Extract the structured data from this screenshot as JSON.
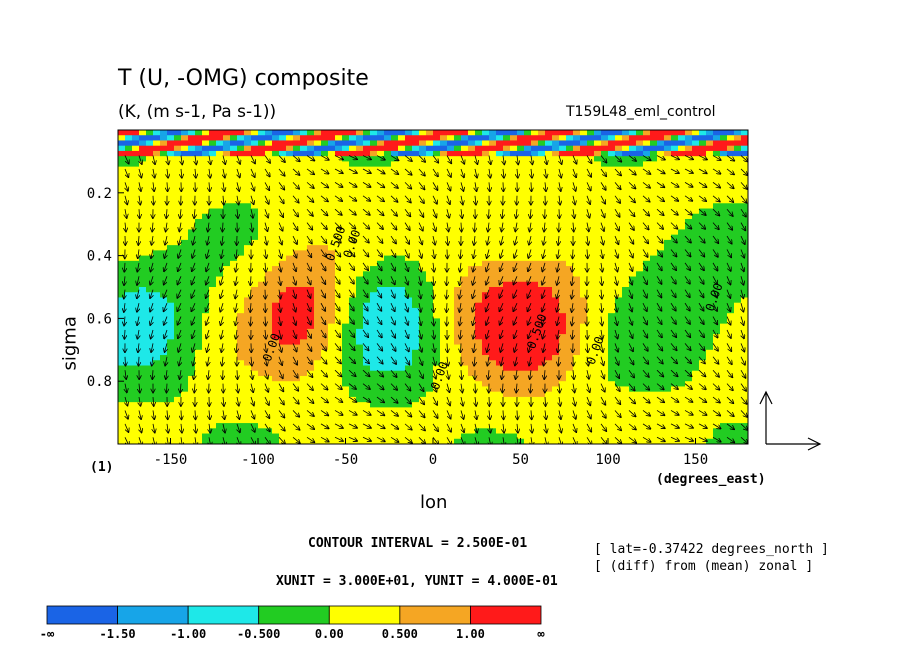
{
  "header": {
    "title": "T (U, -OMG) composite",
    "subtitle": "(K, (m s-1, Pa s-1))",
    "run_name": "T159L48_eml_control"
  },
  "footer": {
    "contour_interval": "CONTOUR INTERVAL = 2.500E-01",
    "units": "XUNIT = 3.000E+01, YUNIT = 4.000E-01",
    "lat_note": "[ lat=-0.37422 degrees_north ]",
    "diff_note": "[ (diff) from (mean) zonal ]",
    "page_number": "(1)"
  },
  "chart_data": {
    "type": "heatmap",
    "xlabel": "lon",
    "x_units_label": "(degrees_east)",
    "ylabel": "sigma",
    "xlim": [
      -180,
      180
    ],
    "ylim": [
      1.0,
      0.0
    ],
    "x_ticks": [
      -150,
      -100,
      -50,
      0,
      50,
      100,
      150
    ],
    "y_ticks": [
      0.2,
      0.4,
      0.6,
      0.8
    ],
    "colorbar": {
      "labels": [
        "-∞",
        "-1.50",
        "-1.00",
        "-0.500",
        "0.00",
        "0.500",
        "1.00",
        "∞"
      ],
      "colors": [
        "#1a64e6",
        "#17a5e8",
        "#1ee8e8",
        "#22cc22",
        "#ffff00",
        "#f5a623",
        "#ff1a1a"
      ]
    },
    "anomalies": [
      {
        "lon": 55,
        "sigma": 0.62,
        "value": 1.3
      },
      {
        "lon": -72,
        "sigma": 0.58,
        "value": 1.2
      },
      {
        "lon": -28,
        "sigma": 0.6,
        "value": -1.1
      },
      {
        "lon": -165,
        "sigma": 0.6,
        "value": -0.8
      },
      {
        "lon": 140,
        "sigma": 0.55,
        "value": -0.6
      },
      {
        "lon": 20,
        "sigma": 0.5,
        "value": 0.4
      }
    ],
    "contour_labels": [
      {
        "text": "0.500",
        "lon": 58,
        "sigma": 0.7
      },
      {
        "text": "0.00",
        "lon": 92,
        "sigma": 0.75
      },
      {
        "text": "0.00",
        "lon": 160,
        "sigma": 0.58
      },
      {
        "text": "0.500",
        "lon": -57,
        "sigma": 0.42
      },
      {
        "text": "0.00",
        "lon": -93,
        "sigma": 0.74
      },
      {
        "text": "0.00",
        "lon": 3,
        "sigma": 0.83
      },
      {
        "text": "0.00",
        "lon": -47,
        "sigma": 0.41
      }
    ]
  }
}
